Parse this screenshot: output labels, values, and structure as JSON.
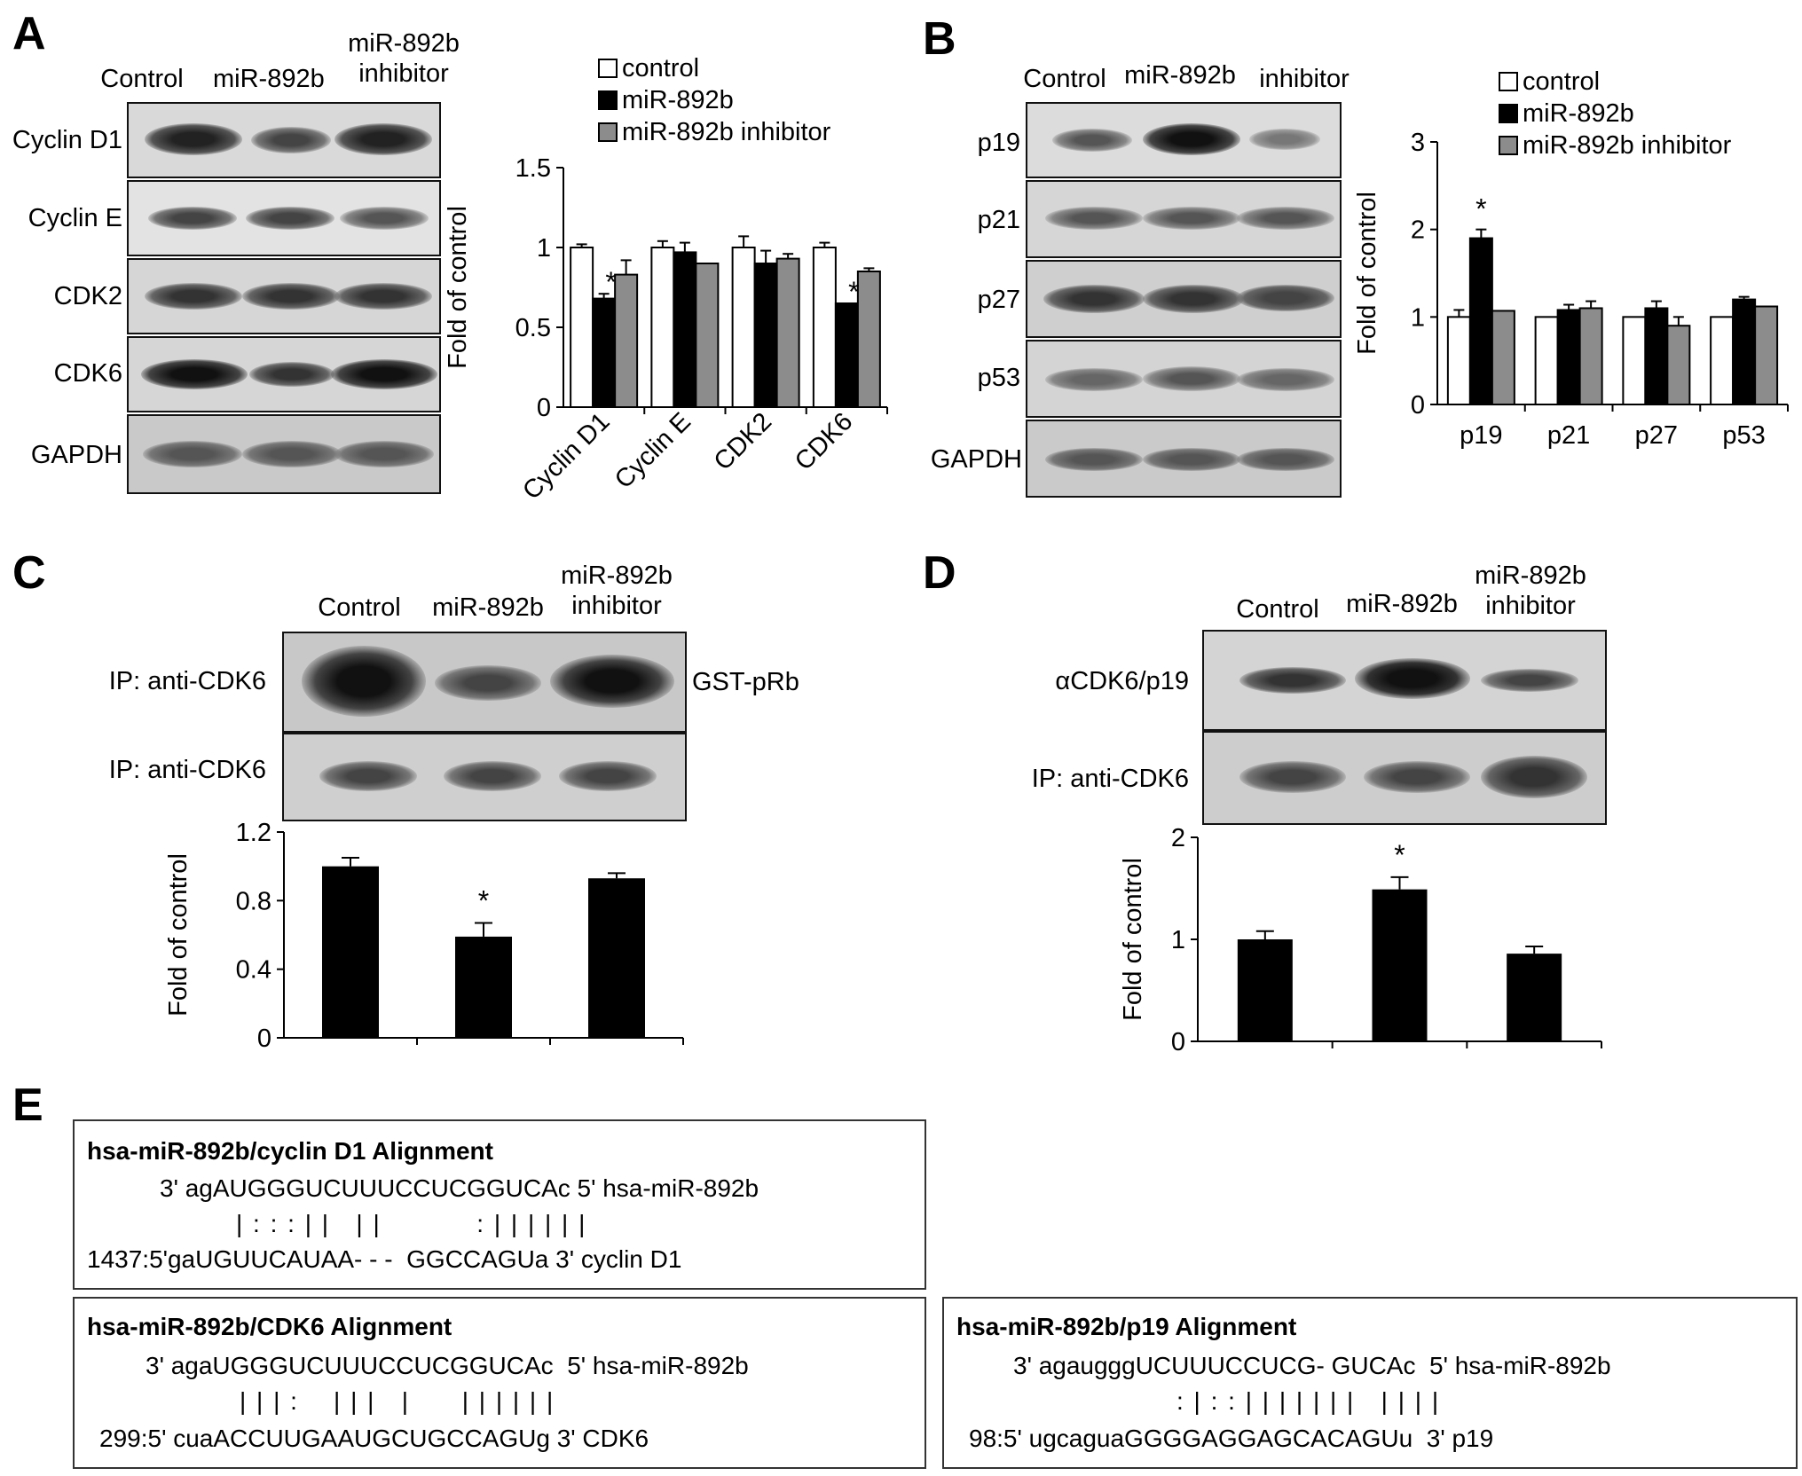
{
  "panels": {
    "A": {
      "label": "A",
      "lanes": [
        "Control",
        "miR-892b",
        "miR-892b\ninhibitor"
      ],
      "rows": [
        "Cyclin D1",
        "Cyclin E",
        "CDK2",
        "CDK6",
        "GAPDH"
      ],
      "legend": [
        "control",
        "miR-892b",
        "miR-892b inhibitor"
      ]
    },
    "B": {
      "label": "B",
      "lanes": [
        "Control",
        "miR-892b",
        "inhibitor"
      ],
      "rows": [
        "p19",
        "p21",
        "p27",
        "p53",
        "GAPDH"
      ],
      "legend": [
        "control",
        "miR-892b",
        "miR-892b inhibitor"
      ]
    },
    "C": {
      "label": "C",
      "lanes": [
        "Control",
        "miR-892b",
        "miR-892b\ninhibitor"
      ],
      "rows": [
        "IP: anti-CDK6",
        "IP: anti-CDK6"
      ],
      "side_label": "GST-pRb"
    },
    "D": {
      "label": "D",
      "lanes": [
        "Control",
        "miR-892b",
        "miR-892b\ninhibitor"
      ],
      "rows": [
        "αCDK6/p19",
        "IP: anti-CDK6"
      ]
    },
    "E": {
      "label": "E",
      "boxes": [
        {
          "title": "hsa-miR-892b/cyclin D1 Alignment",
          "line1": "3' agAUGGGUCUUUCCUCGGUCAc 5' hsa-miR-892b",
          "line2": "| : : : | |   | |           : | | | | | |",
          "line3": "1437:5'gaUGUUCAUAA- - -  GGCCAGUa 3' cyclin D1"
        },
        {
          "title": "hsa-miR-892b/CDK6 Alignment",
          "line1": "3' agaUGGGUCUUUCCUCGGUCAc  5' hsa-miR-892b",
          "line2": "| | | :    | | |   |      | | | | | |",
          "line3": "299:5' cuaACCUUGAAUGCUGCCAGUg 3' CDK6"
        },
        {
          "title": "hsa-miR-892b/p19 Alignment",
          "line1": "3' agaugggUCUUUCCUCG- GUCAc  5' hsa-miR-892b",
          "line2": ": | : : | | | | | | |   | | | |",
          "line3": "98:5' ugcaguaGGGGAGGAGCACAGUu  3' p19"
        }
      ]
    }
  },
  "chart_data": [
    {
      "type": "bar",
      "panel": "A",
      "categories": [
        "Cyclin D1",
        "Cyclin E",
        "CDK2",
        "CDK6"
      ],
      "series": [
        {
          "name": "control",
          "values": [
            1.0,
            1.0,
            1.0,
            1.0
          ],
          "errors": [
            0.02,
            0.04,
            0.07,
            0.03
          ],
          "color": "#ffffff"
        },
        {
          "name": "miR-892b",
          "values": [
            0.68,
            0.97,
            0.9,
            0.65
          ],
          "errors": [
            0.03,
            0.06,
            0.08,
            0.0
          ],
          "color": "#000000"
        },
        {
          "name": "miR-892b inhibitor",
          "values": [
            0.83,
            0.9,
            0.93,
            0.85
          ],
          "errors": [
            0.09,
            0.0,
            0.03,
            0.02
          ],
          "color": "#8c8c8c"
        }
      ],
      "significance": [
        {
          "category": "Cyclin D1",
          "series": "miR-892b",
          "mark": "*"
        },
        {
          "category": "CDK6",
          "series": "miR-892b",
          "mark": "*"
        }
      ],
      "ylabel": "Fold of control",
      "ylim": [
        0,
        1.5
      ],
      "yticks": [
        "0",
        "0.5",
        "1",
        "1.5"
      ],
      "legend_position": "top"
    },
    {
      "type": "bar",
      "panel": "B",
      "categories": [
        "p19",
        "p21",
        "p27",
        "p53"
      ],
      "series": [
        {
          "name": "control",
          "values": [
            1.0,
            1.0,
            1.0,
            1.0
          ],
          "errors": [
            0.08,
            0.0,
            0.0,
            0.0
          ],
          "color": "#ffffff"
        },
        {
          "name": "miR-892b",
          "values": [
            1.9,
            1.08,
            1.1,
            1.2
          ],
          "errors": [
            0.1,
            0.06,
            0.08,
            0.03
          ],
          "color": "#000000"
        },
        {
          "name": "miR-892b inhibitor",
          "values": [
            1.07,
            1.1,
            0.9,
            1.12
          ],
          "errors": [
            0.0,
            0.08,
            0.1,
            0.0
          ],
          "color": "#8c8c8c"
        }
      ],
      "significance": [
        {
          "category": "p19",
          "series": "miR-892b",
          "mark": "*"
        }
      ],
      "ylabel": "Fold of control",
      "ylim": [
        0,
        3
      ],
      "yticks": [
        "0",
        "1",
        "2",
        "3"
      ],
      "legend_position": "top"
    },
    {
      "type": "bar",
      "panel": "C",
      "categories": [
        "Control",
        "miR-892b",
        "miR-892b inhibitor"
      ],
      "values": [
        1.0,
        0.59,
        0.93
      ],
      "errors": [
        0.05,
        0.08,
        0.03
      ],
      "significance": [
        {
          "index": 1,
          "mark": "*"
        }
      ],
      "ylabel": "Fold of control",
      "ylim": [
        0,
        1.2
      ],
      "yticks": [
        "0",
        "0.4",
        "0.8",
        "1.2"
      ]
    },
    {
      "type": "bar",
      "panel": "D",
      "categories": [
        "Control",
        "miR-892b",
        "miR-892b inhibitor"
      ],
      "values": [
        1.0,
        1.49,
        0.86
      ],
      "errors": [
        0.08,
        0.12,
        0.07
      ],
      "significance": [
        {
          "index": 1,
          "mark": "*"
        }
      ],
      "ylabel": "Fold of control",
      "ylim": [
        0,
        2
      ],
      "yticks": [
        "0",
        "1",
        "2"
      ]
    }
  ]
}
